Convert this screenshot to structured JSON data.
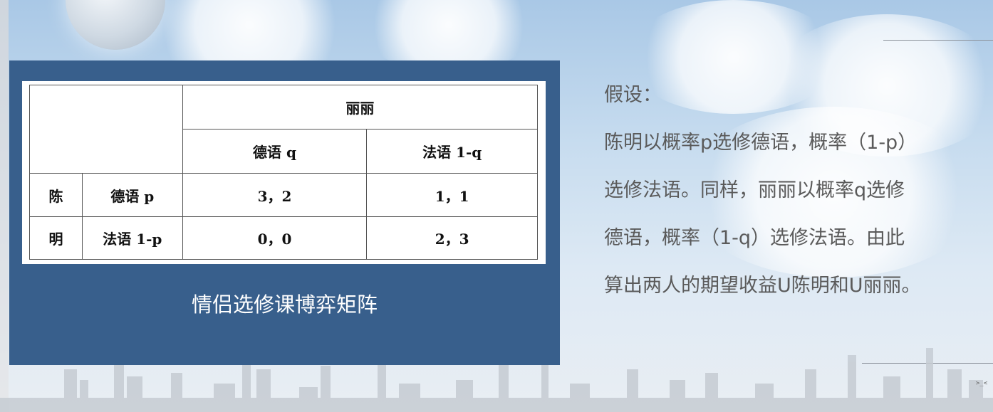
{
  "table": {
    "header_player": "丽丽",
    "col_german": "德语 q",
    "col_french": "法语 1-q",
    "row_player_char1": "陈",
    "row_player_char2": "明",
    "row_german": "德语 p",
    "row_french": "法语 1-p",
    "cells": [
      [
        "3，2",
        "1，1"
      ],
      [
        "0，0",
        "2，3"
      ]
    ]
  },
  "caption": "情侣选修课博弈矩阵",
  "description": {
    "lines": [
      "假设：",
      "陈明以概率p选修德语，概率（1-p）",
      "选修法语。同样，丽丽以概率q选修",
      "德语，概率（1-q）选修法语。由此",
      "算出两人的期望收益U陈明和U丽丽。"
    ]
  },
  "colors": {
    "panel": "#385f8c",
    "text_gray": "#5a5a5a"
  }
}
